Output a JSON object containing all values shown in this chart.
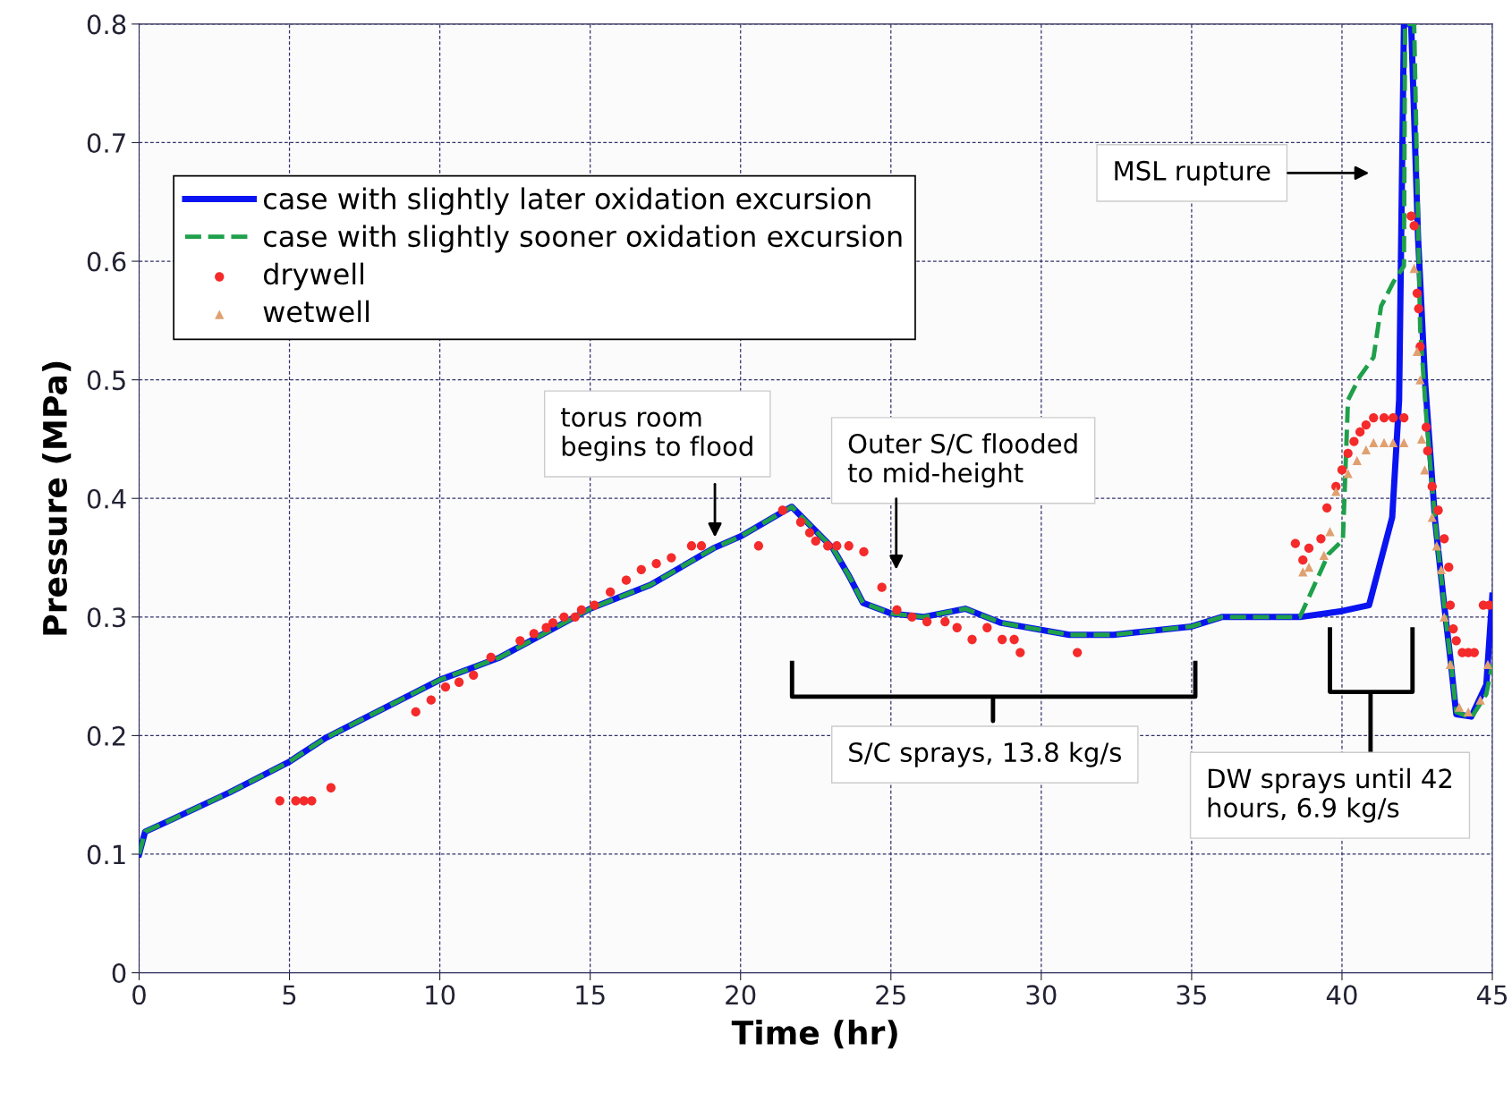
{
  "chart_data": {
    "type": "line",
    "xlabel": "Time (hr)",
    "ylabel": "Pressure (MPa)",
    "xlim": [
      0,
      45
    ],
    "ylim": [
      0,
      0.8
    ],
    "xticks": [
      0,
      5,
      10,
      15,
      20,
      25,
      30,
      35,
      40,
      45
    ],
    "yticks": [
      0,
      0.1,
      0.2,
      0.3,
      0.4,
      0.5,
      0.6,
      0.7,
      0.8
    ],
    "grid": true,
    "legend": "top left",
    "series": [
      {
        "name": "case with slightly later oxidation excursion",
        "line_style": "solid",
        "color": "#0a14f0",
        "x": [
          0,
          0.2,
          0.9,
          3,
          5,
          5.24,
          6.2,
          10,
          12,
          15,
          17,
          19.1,
          20,
          21.7,
          23.07,
          23.6,
          24.07,
          25,
          26.07,
          27.47,
          28.67,
          30.93,
          32.4,
          35,
          36,
          38.6,
          40,
          40.9,
          41.67,
          41.9,
          42.06,
          42.3,
          42.53,
          42.76,
          43.1,
          43.4,
          43.6,
          43.8,
          44.3,
          44.8,
          45
        ],
        "values": [
          0.1,
          0.119,
          0.127,
          0.152,
          0.178,
          0.182,
          0.198,
          0.247,
          0.266,
          0.307,
          0.327,
          0.358,
          0.368,
          0.393,
          0.358,
          0.335,
          0.312,
          0.303,
          0.3,
          0.307,
          0.295,
          0.285,
          0.285,
          0.292,
          0.3,
          0.3,
          0.305,
          0.31,
          0.384,
          0.483,
          0.8,
          0.8,
          0.62,
          0.5,
          0.38,
          0.31,
          0.266,
          0.218,
          0.216,
          0.243,
          0.318
        ]
      },
      {
        "name": "case with slightly sooner oxidation excursion",
        "line_style": "dashed",
        "color": "#1fa04a",
        "x": [
          0,
          0.2,
          0.9,
          3,
          5,
          5.24,
          6.2,
          10,
          12,
          15,
          17,
          19.1,
          20,
          21.7,
          23.07,
          23.6,
          24.07,
          25,
          26.07,
          27.47,
          28.67,
          30.93,
          32.4,
          35,
          36,
          38.6,
          39.55,
          40.03,
          40.2,
          40.6,
          41.05,
          41.3,
          41.7,
          42.06,
          42.1,
          42.4,
          42.6,
          42.8,
          43.1,
          43.4,
          43.6,
          43.8,
          44.3,
          44.8,
          45
        ],
        "values": [
          0.1,
          0.119,
          0.127,
          0.152,
          0.178,
          0.182,
          0.198,
          0.247,
          0.266,
          0.307,
          0.327,
          0.358,
          0.368,
          0.393,
          0.358,
          0.335,
          0.312,
          0.303,
          0.3,
          0.307,
          0.295,
          0.285,
          0.285,
          0.292,
          0.3,
          0.3,
          0.353,
          0.365,
          0.483,
          0.503,
          0.519,
          0.562,
          0.582,
          0.596,
          0.8,
          0.8,
          0.543,
          0.47,
          0.38,
          0.31,
          0.266,
          0.22,
          0.215,
          0.235,
          0.26
        ]
      },
      {
        "name": "drywell",
        "type": "scatter",
        "marker": "circle",
        "color": "#f52a2a",
        "x": [
          4.68,
          5.21,
          5.48,
          5.74,
          6.38,
          9.2,
          9.71,
          10.19,
          10.64,
          11.12,
          11.7,
          12.67,
          13.13,
          13.54,
          13.76,
          14.13,
          14.5,
          14.71,
          15.14,
          15.67,
          16.2,
          16.7,
          17.2,
          17.7,
          18.37,
          18.7,
          20.6,
          21.4,
          22.0,
          22.3,
          22.5,
          22.9,
          23.2,
          23.6,
          24.1,
          24.7,
          25.2,
          25.7,
          26.2,
          26.8,
          27.2,
          27.7,
          28.2,
          28.7,
          29.1,
          29.3,
          31.2,
          38.45,
          38.7,
          38.9,
          39.3,
          39.5,
          39.8,
          40.0,
          40.2,
          40.4,
          40.6,
          40.8,
          41.05,
          41.4,
          41.7,
          42.06,
          42.3,
          42.4,
          42.5,
          42.55,
          42.6,
          42.8,
          42.85,
          43.0,
          43.2,
          43.4,
          43.55,
          43.6,
          43.7,
          43.8,
          44.0,
          44.2,
          44.4,
          44.7,
          44.9
        ],
        "values": [
          0.145,
          0.145,
          0.145,
          0.145,
          0.156,
          0.22,
          0.23,
          0.241,
          0.245,
          0.251,
          0.266,
          0.28,
          0.286,
          0.291,
          0.295,
          0.3,
          0.3,
          0.306,
          0.31,
          0.321,
          0.331,
          0.34,
          0.345,
          0.35,
          0.36,
          0.36,
          0.36,
          0.39,
          0.38,
          0.371,
          0.364,
          0.36,
          0.36,
          0.36,
          0.355,
          0.325,
          0.306,
          0.3,
          0.296,
          0.296,
          0.291,
          0.281,
          0.291,
          0.281,
          0.281,
          0.27,
          0.27,
          0.362,
          0.348,
          0.358,
          0.366,
          0.392,
          0.41,
          0.424,
          0.438,
          0.448,
          0.456,
          0.462,
          0.468,
          0.468,
          0.468,
          0.468,
          0.638,
          0.63,
          0.573,
          0.56,
          0.528,
          0.46,
          0.44,
          0.41,
          0.39,
          0.366,
          0.342,
          0.31,
          0.29,
          0.28,
          0.27,
          0.27,
          0.27,
          0.31,
          0.31
        ]
      },
      {
        "name": "wetwell",
        "type": "scatter",
        "marker": "triangle",
        "color": "#e0a070",
        "x": [
          38.7,
          38.9,
          39.4,
          39.6,
          39.8,
          40.2,
          40.5,
          40.8,
          41.05,
          41.4,
          41.7,
          42.06,
          42.4,
          42.5,
          42.6,
          42.65,
          42.75,
          43.0,
          43.15,
          43.3,
          43.4,
          43.6,
          43.9,
          44.2,
          44.6,
          44.85
        ],
        "values": [
          0.338,
          0.342,
          0.352,
          0.372,
          0.406,
          0.421,
          0.432,
          0.441,
          0.447,
          0.447,
          0.447,
          0.447,
          0.594,
          0.524,
          0.5,
          0.45,
          0.424,
          0.384,
          0.36,
          0.34,
          0.3,
          0.26,
          0.224,
          0.22,
          0.23,
          0.26
        ]
      }
    ],
    "annotations": [
      "torus room\nbegins to flood",
      "Outer S/C flooded\nto mid-height",
      "MSL rupture",
      "S/C sprays, 13.8 kg/s",
      "DW sprays until 42\nhours, 6.9 kg/s"
    ]
  }
}
